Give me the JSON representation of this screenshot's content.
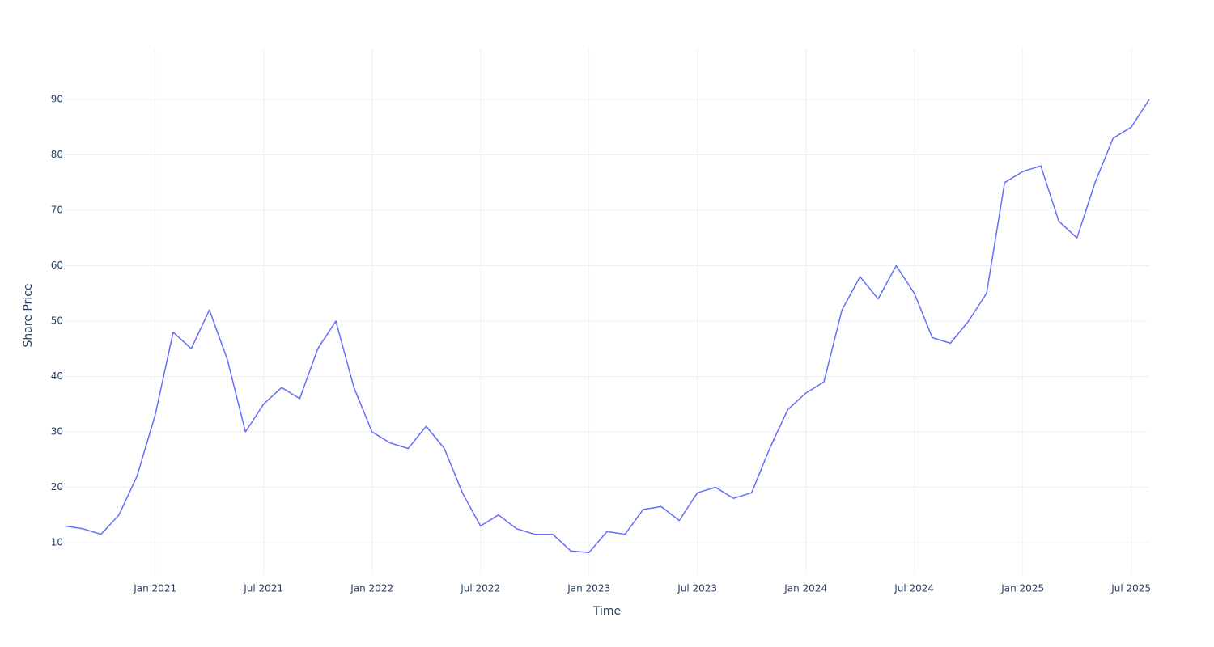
{
  "chart_data": {
    "type": "line",
    "x_label": "Time",
    "y_label": "Share Price",
    "x": [
      "2020-08",
      "2020-09",
      "2020-10",
      "2020-11",
      "2020-12",
      "2021-01",
      "2021-02",
      "2021-03",
      "2021-04",
      "2021-05",
      "2021-06",
      "2021-07",
      "2021-08",
      "2021-09",
      "2021-10",
      "2021-11",
      "2021-12",
      "2022-01",
      "2022-02",
      "2022-03",
      "2022-04",
      "2022-05",
      "2022-06",
      "2022-07",
      "2022-08",
      "2022-09",
      "2022-10",
      "2022-11",
      "2022-12",
      "2023-01",
      "2023-02",
      "2023-03",
      "2023-04",
      "2023-05",
      "2023-06",
      "2023-07",
      "2023-08",
      "2023-09",
      "2023-10",
      "2023-11",
      "2023-12",
      "2024-01",
      "2024-02",
      "2024-03",
      "2024-04",
      "2024-05",
      "2024-06",
      "2024-07",
      "2024-08",
      "2024-09",
      "2024-10",
      "2024-11",
      "2024-12",
      "2025-01",
      "2025-02",
      "2025-03",
      "2025-04",
      "2025-05",
      "2025-06",
      "2025-07",
      "2025-08"
    ],
    "series": [
      {
        "name": "Share Price",
        "color": "#636efa",
        "values": [
          13,
          12.5,
          11.5,
          15,
          22,
          33,
          48,
          45,
          52,
          43,
          30,
          35,
          38,
          36,
          45,
          50,
          38,
          30,
          28,
          27,
          31,
          27,
          19,
          13,
          15,
          12.5,
          11.5,
          11.5,
          8.5,
          8.2,
          12,
          11.5,
          16,
          16.5,
          14,
          19,
          20,
          18,
          19,
          27,
          34,
          37,
          39,
          52,
          58,
          54,
          60,
          55,
          47,
          46,
          50,
          55,
          75,
          77,
          78,
          68,
          65,
          75,
          83,
          85,
          90
        ]
      }
    ],
    "xlim": [
      "2020-08",
      "2025-08"
    ],
    "xticks": [
      {
        "value": "2021-01",
        "label": "Jan 2021"
      },
      {
        "value": "2021-07",
        "label": "Jul 2021"
      },
      {
        "value": "2022-01",
        "label": "Jan 2022"
      },
      {
        "value": "2022-07",
        "label": "Jul 2022"
      },
      {
        "value": "2023-01",
        "label": "Jan 2023"
      },
      {
        "value": "2023-07",
        "label": "Jul 2023"
      },
      {
        "value": "2024-01",
        "label": "Jan 2024"
      },
      {
        "value": "2024-07",
        "label": "Jul 2024"
      },
      {
        "value": "2025-01",
        "label": "Jan 2025"
      },
      {
        "value": "2025-07",
        "label": "Jul 2025"
      }
    ],
    "ylim": [
      4.3,
      99.2
    ],
    "yticks": [
      10,
      20,
      30,
      40,
      50,
      60,
      70,
      80,
      90
    ],
    "grid": true
  }
}
